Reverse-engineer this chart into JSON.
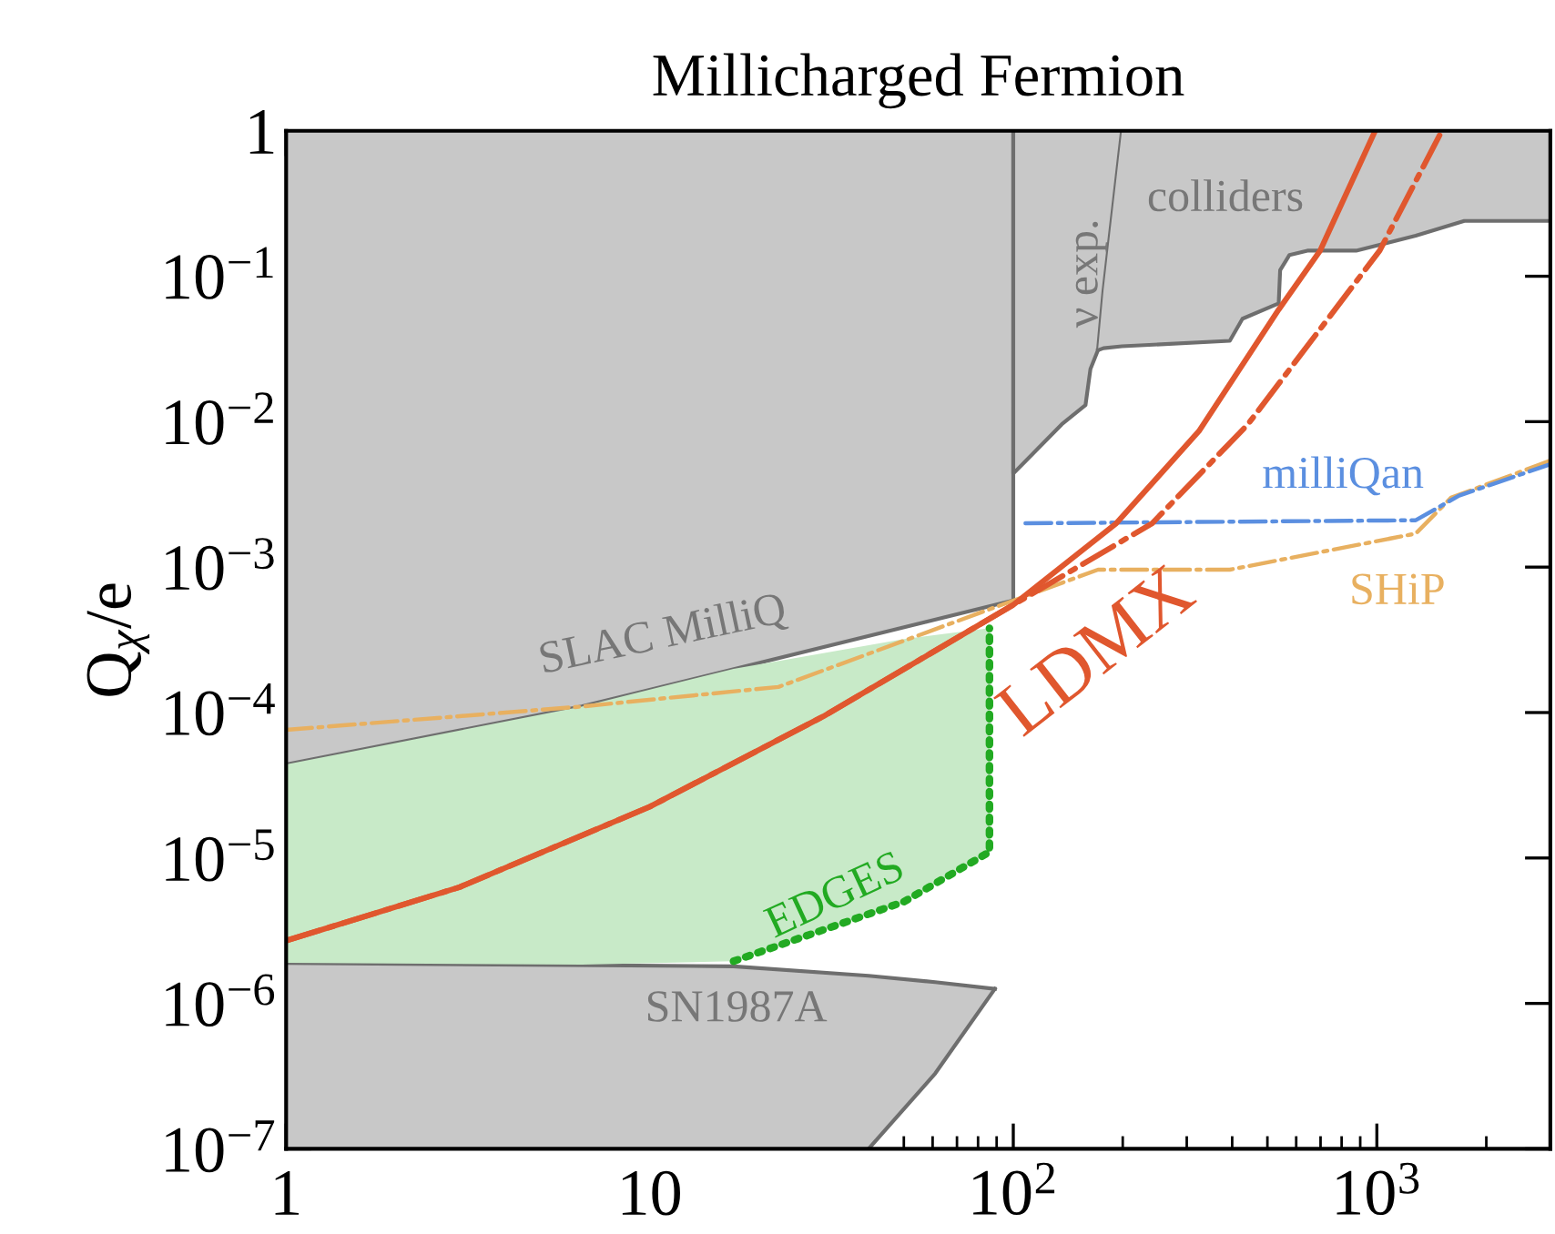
{
  "chart_data": {
    "type": "line",
    "title": "Millicharged Fermion",
    "ylabel": "Q$_{χ}$/e",
    "log": "xy",
    "xlim": [
      1,
      3000
    ],
    "ylim": [
      1e-07,
      1
    ],
    "xticks": [
      1,
      10,
      {
        "value": 100,
        "label": "10$^{2}$"
      },
      {
        "value": 1000,
        "label": "10$^{3}$"
      }
    ],
    "yticks": [
      {
        "value": 1e-07,
        "label": "10$^{−7}$"
      },
      {
        "value": 1e-06,
        "label": "10$^{−6}$"
      },
      {
        "value": 1e-05,
        "label": "10$^{−5}$"
      },
      {
        "value": 0.0001,
        "label": "10$^{−4}$"
      },
      {
        "value": 0.001,
        "label": "10$^{−3}$"
      },
      {
        "value": 0.01,
        "label": "10$^{−2}$"
      },
      {
        "value": 0.1,
        "label": "10$^{−1}$"
      },
      1
    ],
    "grid": false,
    "legend": false,
    "series": [
      {
        "color": "#6e6e6e",
        "line_style": "solid",
        "x": [
          1,
          6.5,
          100,
          100
        ],
        "values": [
          4.4e-05,
          0.00011,
          0.00059,
          1
        ],
        "lower": [
          4.4e-05,
          0.00011,
          0.00059,
          1
        ],
        "upper": [
          1,
          1,
          1,
          1
        ]
      },
      {
        "color": "#6e6e6e",
        "line_style": "solid",
        "x": [
          100,
          100,
          116,
          136,
          158,
          163,
          171,
          177,
          199
        ],
        "values": [
          1,
          0.0044,
          0.0064,
          0.0096,
          0.013,
          0.023,
          0.031,
          0.079,
          1
        ],
        "lower": [
          1,
          0.0044,
          0.0064,
          0.0096,
          0.013,
          0.023,
          0.031,
          0.079,
          1
        ],
        "upper": [
          1,
          1,
          1,
          1,
          1,
          1,
          1,
          1,
          1
        ]
      },
      {
        "color": "#6e6e6e",
        "line_style": "solid",
        "x": [
          171,
          177,
          199,
          394,
          427,
          537,
          542,
          575,
          644,
          877,
          1279,
          1740,
          3000
        ],
        "values": [
          0.031,
          0.032,
          0.033,
          0.036,
          0.051,
          0.065,
          0.11,
          0.14,
          0.15,
          0.15,
          0.19,
          0.24,
          0.24
        ],
        "lower": [
          0.031,
          0.032,
          0.033,
          0.036,
          0.051,
          0.065,
          0.11,
          0.14,
          0.15,
          0.15,
          0.19,
          0.24,
          0.24
        ],
        "upper": [
          0.031,
          0.079,
          1,
          1,
          1,
          1,
          1,
          1,
          1,
          1,
          1,
          1,
          1
        ]
      },
      {
        "color": "#6e6e6e",
        "line_style": "solid",
        "x": [
          1,
          17,
          40,
          61,
          89
        ],
        "values": [
          1.9e-06,
          1.8e-06,
          1.55e-06,
          1.4e-06,
          1.26e-06
        ],
        "lower": [
          1e-07,
          1e-07,
          1e-07,
          3.3e-07,
          1.26e-06
        ],
        "upper": [
          1.9e-06,
          1.8e-06,
          1.55e-06,
          1.4e-06,
          1.26e-06
        ]
      },
      {
        "color": "#6e6e6e",
        "line_style": "solid",
        "x": [
          40,
          61,
          89
        ],
        "values": [
          1e-07,
          3.3e-07,
          1.26e-06
        ]
      },
      {
        "color": "#22aa22",
        "line_style": "dotted",
        "x": [
          1,
          6.5,
          17,
          50,
          86,
          86
        ],
        "values": [
          null,
          null,
          1.95e-06,
          5e-06,
          1.1e-05,
          0.00038
        ],
        "lower": [
          1.9e-06,
          1.85e-06,
          1.95e-06,
          5e-06,
          1.1e-05,
          0.00038
        ],
        "upper": [
          4.4e-05,
          0.00011,
          0.0002,
          0.00032,
          0.00038,
          0.00038
        ]
      },
      {
        "color": "#e8b060",
        "line_style": "dashdot",
        "x": [
          1,
          6.5,
          22.6,
          80,
          171,
          394,
          1279,
          1600,
          3000
        ],
        "values": [
          7.6e-05,
          0.00011,
          0.00015,
          0.00048,
          0.00096,
          0.00096,
          0.0017,
          0.003,
          0.0054
        ]
      },
      {
        "color": "#5b8fe0",
        "line_style": "dashdot",
        "x": [
          108,
          1279,
          1683,
          3000
        ],
        "values": [
          0.002,
          0.0021,
          0.0031,
          0.0051
        ]
      },
      {
        "color": "#e0572e",
        "line_style": "dashdot",
        "x": [
          1,
          3,
          10,
          30,
          100,
          241,
          442,
          1018,
          1500
        ],
        "values": [
          2.7e-06,
          6.3e-06,
          2.25e-05,
          9.4e-05,
          0.00055,
          0.002,
          0.0096,
          0.15,
          0.97
        ]
      },
      {
        "color": "#e0572e",
        "line_style": "solid",
        "x": [
          1,
          3,
          10,
          30,
          100,
          192,
          324,
          537,
          698,
          984
        ],
        "values": [
          2.7e-06,
          6.3e-06,
          2.25e-05,
          9.4e-05,
          0.00055,
          0.002,
          0.0086,
          0.059,
          0.15,
          0.97
        ]
      }
    ],
    "annotations": [
      "colliders",
      "ν exp.",
      "milliQan",
      "SHiP",
      "LDMX",
      "SLAC MilliQ",
      "EDGES",
      "SN1987A"
    ]
  }
}
